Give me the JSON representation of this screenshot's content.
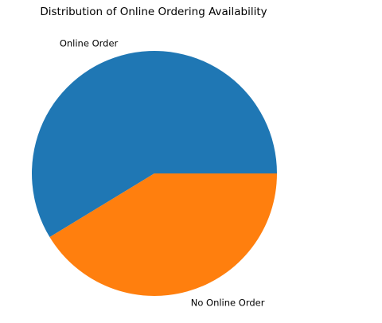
{
  "chart_data": {
    "type": "pie",
    "title": "Distribution of Online Ordering Availability",
    "labels": [
      "Online Order",
      "No Online Order"
    ],
    "values": [
      58.7,
      41.3
    ],
    "colors": [
      "#1f77b4",
      "#ff7f0e"
    ],
    "start_angle_deg": 0,
    "direction": "counterclockwise",
    "legend": "none"
  }
}
